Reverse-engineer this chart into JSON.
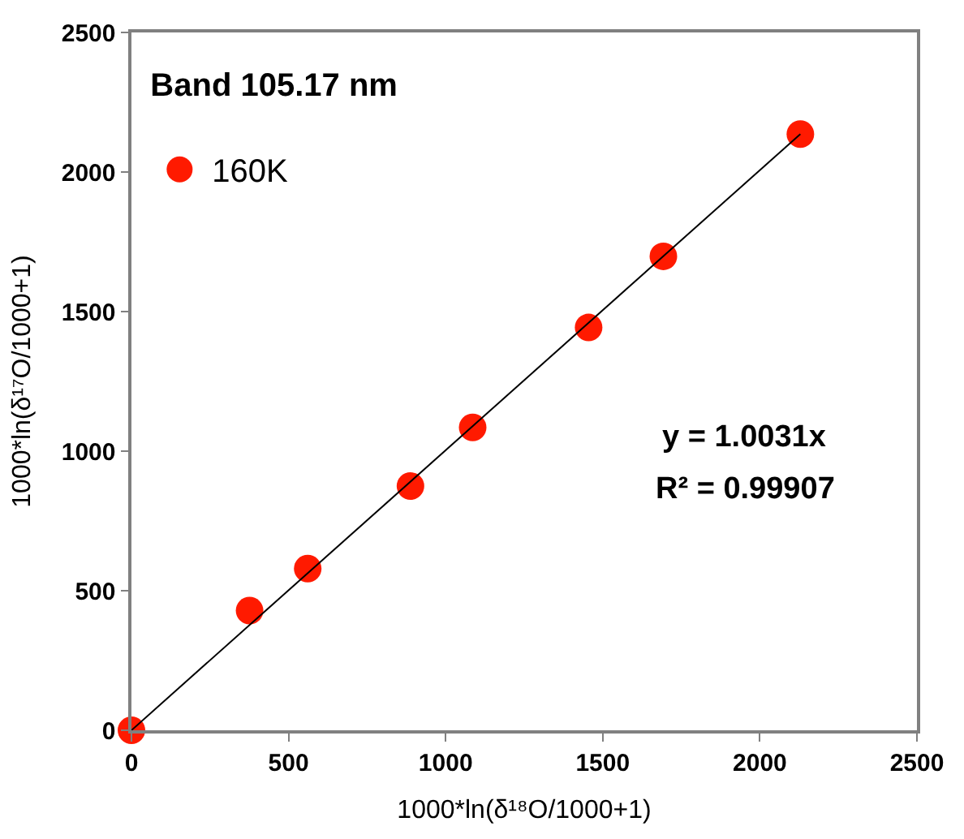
{
  "chart_data": {
    "type": "scatter",
    "xlabel": "1000*ln(δ¹⁸O/1000+1)",
    "ylabel": "1000*ln(δ¹⁷O/1000+1)",
    "legend_title": "Band 105.17 nm",
    "x": [
      0,
      376,
      561,
      888,
      1086,
      1455,
      1693,
      2129
    ],
    "series": [
      {
        "name": "160K",
        "color": "#ff1a00",
        "marker": "circle",
        "values": [
          0,
          429,
          579,
          875,
          1085,
          1443,
          1698,
          2136
        ]
      },
      {
        "type": "line",
        "color": "#000000",
        "x": [
          0,
          2129
        ],
        "values": [
          0,
          2136
        ]
      }
    ],
    "annotations": [
      "y = 1.0031x",
      "R² = 0.99907"
    ],
    "xlim": [
      0,
      2500
    ],
    "ylim": [
      0,
      2500
    ],
    "xticks": [
      0,
      500,
      1000,
      1500,
      2000,
      2500
    ],
    "yticks": [
      0,
      500,
      1000,
      1500,
      2000,
      2500
    ],
    "legend": "top left"
  }
}
